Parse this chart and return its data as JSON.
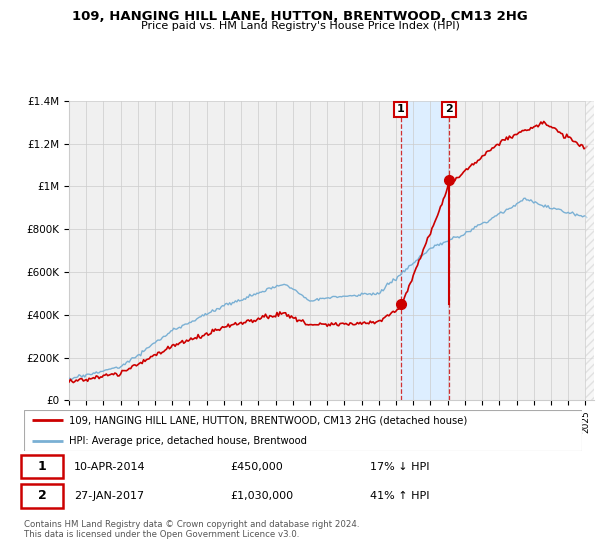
{
  "title": "109, HANGING HILL LANE, HUTTON, BRENTWOOD, CM13 2HG",
  "subtitle": "Price paid vs. HM Land Registry's House Price Index (HPI)",
  "ylim": [
    0,
    1400000
  ],
  "yticks": [
    0,
    200000,
    400000,
    600000,
    800000,
    1000000,
    1200000,
    1400000
  ],
  "ytick_labels": [
    "£0",
    "£200K",
    "£400K",
    "£600K",
    "£800K",
    "£1M",
    "£1.2M",
    "£1.4M"
  ],
  "xlim_start": 1995,
  "xlim_end": 2025.5,
  "sale1_date": 2014.27,
  "sale1_price": 450000,
  "sale2_date": 2017.08,
  "sale2_price": 1030000,
  "sale1_text": "10-APR-2014",
  "sale1_price_text": "£450,000",
  "sale1_hpi_text": "17% ↓ HPI",
  "sale2_text": "27-JAN-2017",
  "sale2_price_text": "£1,030,000",
  "sale2_hpi_text": "41% ↑ HPI",
  "property_color": "#cc0000",
  "hpi_color": "#7ab0d4",
  "shade_color": "#ddeeff",
  "bg_color": "#f0f0f0",
  "footer_text": "Contains HM Land Registry data © Crown copyright and database right 2024.\nThis data is licensed under the Open Government Licence v3.0.",
  "legend_property": "109, HANGING HILL LANE, HUTTON, BRENTWOOD, CM13 2HG (detached house)",
  "legend_hpi": "HPI: Average price, detached house, Brentwood"
}
